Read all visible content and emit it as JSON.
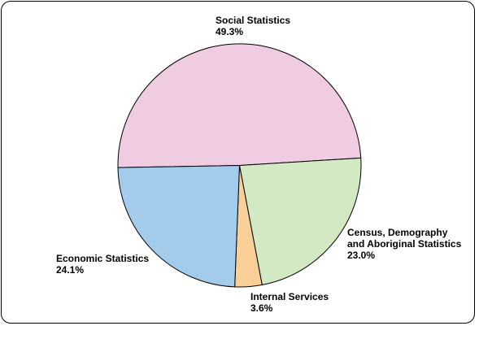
{
  "chart_data": {
    "type": "pie",
    "title": "",
    "slices": [
      {
        "label": "Social Statistics",
        "value": 49.3,
        "value_label": "49.3%",
        "color": "#f0cce2"
      },
      {
        "label": "Census, Demography and Aboriginal Statistics",
        "label_lines": [
          "Census, Demography",
          "and Aboriginal Statistics"
        ],
        "value": 23.0,
        "value_label": "23.0%",
        "color": "#d2e9c4"
      },
      {
        "label": "Internal Services",
        "value": 3.6,
        "value_label": "3.6%",
        "color": "#fbcf98"
      },
      {
        "label": "Economic Statistics",
        "value": 24.1,
        "value_label": "24.1%",
        "color": "#a3cbec"
      }
    ],
    "legend": "none"
  }
}
